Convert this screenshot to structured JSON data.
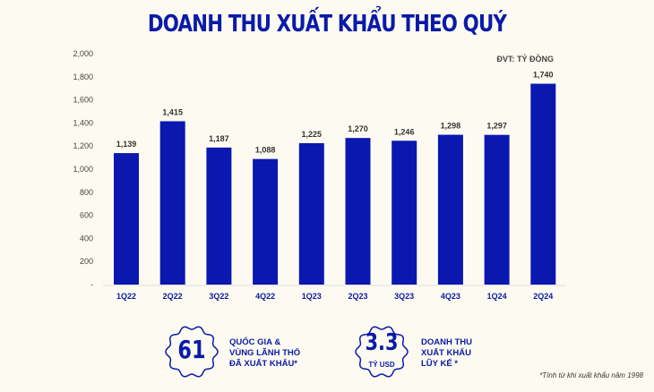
{
  "chart_data": {
    "type": "bar",
    "title": "DOANH THU XUẤT KHẨU THEO QUÝ",
    "unit_label": "ĐVT: TỶ ĐỒNG",
    "categories": [
      "1Q22",
      "2Q22",
      "3Q22",
      "4Q22",
      "1Q23",
      "2Q23",
      "3Q23",
      "4Q23",
      "1Q24",
      "2Q24"
    ],
    "values": [
      1139,
      1415,
      1187,
      1088,
      1225,
      1270,
      1246,
      1298,
      1297,
      1740
    ],
    "value_labels": [
      "1,139",
      "1,415",
      "1,187",
      "1,088",
      "1,225",
      "1,270",
      "1,246",
      "1,298",
      "1,297",
      "1,740"
    ],
    "ylim": [
      0,
      2000
    ],
    "yticks": [
      "-",
      "200",
      "400",
      "600",
      "800",
      "1,000",
      "1,200",
      "1,400",
      "1,600",
      "1,800",
      "2,000"
    ],
    "grid": false,
    "bar_color": "#0a18b0"
  },
  "stats": [
    {
      "value": "61",
      "sub": "",
      "lines": [
        "QUỐC GIA &",
        "VÙNG LÃNH THỔ",
        "ĐÃ XUẤT KHẨU*"
      ]
    },
    {
      "value": "3.3",
      "sub": "TỶ USD",
      "lines": [
        "DOANH THU",
        "XUẤT KHẨU",
        "LŨY KẾ *"
      ]
    }
  ],
  "footnote": "*Tính từ khi xuất khẩu năm 1998"
}
